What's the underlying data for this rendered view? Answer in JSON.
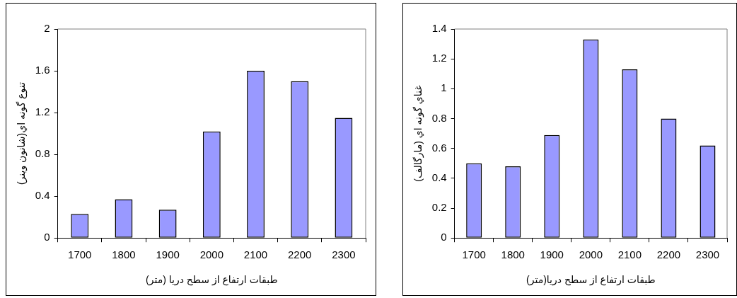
{
  "chart_data": [
    {
      "type": "bar",
      "xlabel": "طبقات ارتفاع از سطح دريا (متر)",
      "ylabel": "تنوع گونه اي(شانون وينر)",
      "categories": [
        "1700",
        "1800",
        "1900",
        "2000",
        "2100",
        "2200",
        "2300"
      ],
      "values": [
        0.23,
        0.37,
        0.27,
        1.02,
        1.6,
        1.5,
        1.15
      ],
      "color": "#9999ff",
      "ylim": [
        0,
        2
      ],
      "yticks": [
        0,
        0.4,
        0.8,
        1.2,
        1.6,
        2
      ],
      "grid": false,
      "legend": false
    },
    {
      "type": "bar",
      "xlabel": "طبقات ارتفاع از سطح دريا(متر)",
      "ylabel": "غناي گونه اي (مارگالف)",
      "categories": [
        "1700",
        "1800",
        "1900",
        "2000",
        "2100",
        "2200",
        "2300"
      ],
      "values": [
        0.5,
        0.48,
        0.69,
        1.33,
        1.13,
        0.8,
        0.62
      ],
      "color": "#9999ff",
      "ylim": [
        0,
        1.4
      ],
      "yticks": [
        0,
        0.2,
        0.4,
        0.6,
        0.8,
        1,
        1.2,
        1.4
      ],
      "grid": false,
      "legend": false
    }
  ]
}
